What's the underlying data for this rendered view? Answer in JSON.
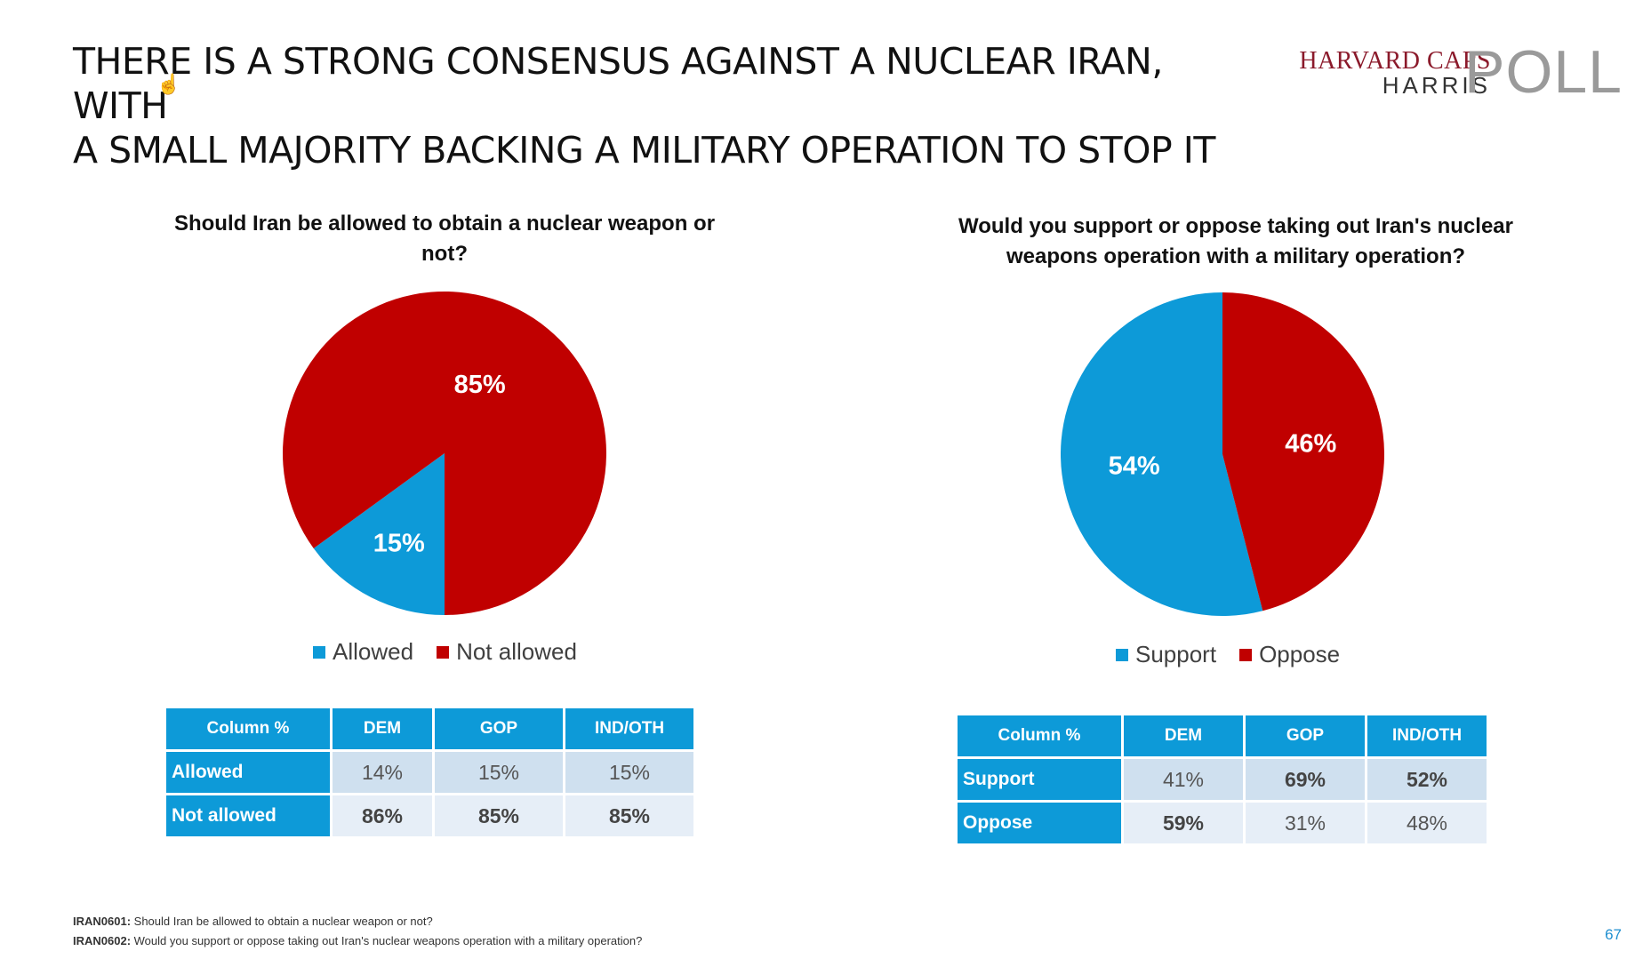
{
  "title_line1": "THERE IS A STRONG CONSENSUS AGAINST A NUCLEAR IRAN, WITH",
  "title_line2": "A SMALL MAJORITY BACKING A MILITARY OPERATION TO STOP IT",
  "logo": {
    "line1": "HARVARD CAPS",
    "line2": "HARRIS",
    "poll": "POLL"
  },
  "colors": {
    "blue": "#0d9ad8",
    "red": "#c00000"
  },
  "chart_data": [
    {
      "type": "pie",
      "title_line1": "Should Iran be allowed to obtain a nuclear weapon or",
      "title_line2": "not?",
      "categories": [
        "Allowed",
        "Not allowed"
      ],
      "values": [
        15,
        85
      ],
      "labels": [
        "15%",
        "85%"
      ],
      "colors": [
        "#0d9ad8",
        "#c00000"
      ],
      "legend": "bottom"
    },
    {
      "type": "pie",
      "title_line1": "Would you support or oppose taking out Iran's nuclear",
      "title_line2": "weapons operation with a military operation?",
      "categories": [
        "Support",
        "Oppose"
      ],
      "values": [
        54,
        46
      ],
      "labels": [
        "54%",
        "46%"
      ],
      "colors": [
        "#0d9ad8",
        "#c00000"
      ],
      "legend": "bottom"
    }
  ],
  "table1": {
    "headers": [
      "Column %",
      "DEM",
      "GOP",
      "IND/OTH"
    ],
    "rows": [
      {
        "label": "Allowed",
        "values": [
          "14%",
          "15%",
          "15%"
        ]
      },
      {
        "label": "Not allowed",
        "values": [
          "86%",
          "85%",
          "85%"
        ]
      }
    ]
  },
  "table2": {
    "headers": [
      "Column %",
      "DEM",
      "GOP",
      "IND/OTH"
    ],
    "rows": [
      {
        "label": "Support",
        "values": [
          "41%",
          "69%",
          "52%"
        ]
      },
      {
        "label": "Oppose",
        "values": [
          "59%",
          "31%",
          "48%"
        ]
      }
    ]
  },
  "footnotes": {
    "f1_code": "IRAN0601:",
    "f1_text": " Should Iran be allowed to obtain a nuclear weapon or not?",
    "f2_code": "IRAN0602:",
    "f2_text": " Would you support or oppose taking out Iran's nuclear weapons operation with a military operation?"
  },
  "page_number": "67"
}
